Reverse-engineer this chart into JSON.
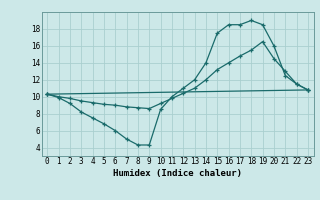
{
  "xlabel": "Humidex (Indice chaleur)",
  "bg_color": "#cce8e8",
  "line_color": "#1a6b6b",
  "grid_color": "#aacfcf",
  "xlim": [
    -0.5,
    23.5
  ],
  "ylim": [
    3,
    20
  ],
  "xticks": [
    0,
    1,
    2,
    3,
    4,
    5,
    6,
    7,
    8,
    9,
    10,
    11,
    12,
    13,
    14,
    15,
    16,
    17,
    18,
    19,
    20,
    21,
    22,
    23
  ],
  "yticks": [
    4,
    6,
    8,
    10,
    12,
    14,
    16,
    18
  ],
  "line1_x": [
    0,
    1,
    2,
    3,
    4,
    5,
    6,
    7,
    8,
    9,
    10,
    11,
    12,
    13,
    14,
    15,
    16,
    17,
    18,
    19,
    20,
    21,
    22,
    23
  ],
  "line1_y": [
    10.3,
    9.9,
    9.2,
    8.2,
    7.5,
    6.8,
    6.0,
    5.0,
    4.3,
    4.3,
    8.5,
    10.0,
    11.0,
    12.0,
    14.0,
    17.5,
    18.5,
    18.5,
    19.0,
    18.5,
    16.0,
    12.5,
    11.5,
    10.8
  ],
  "line2_x": [
    0,
    1,
    2,
    3,
    4,
    5,
    6,
    7,
    8,
    9,
    10,
    11,
    12,
    13,
    14,
    15,
    16,
    17,
    18,
    19,
    20,
    21,
    22,
    23
  ],
  "line2_y": [
    10.3,
    10.0,
    9.8,
    9.5,
    9.3,
    9.1,
    9.0,
    8.8,
    8.7,
    8.6,
    9.2,
    9.8,
    10.4,
    11.0,
    12.0,
    13.2,
    14.0,
    14.8,
    15.5,
    16.5,
    14.5,
    13.0,
    11.5,
    10.8
  ],
  "line3_x": [
    0,
    23
  ],
  "line3_y": [
    10.3,
    10.8
  ],
  "tick_fontsize": 5.5,
  "label_fontsize": 6.5,
  "lw": 0.9,
  "ms": 3.5
}
